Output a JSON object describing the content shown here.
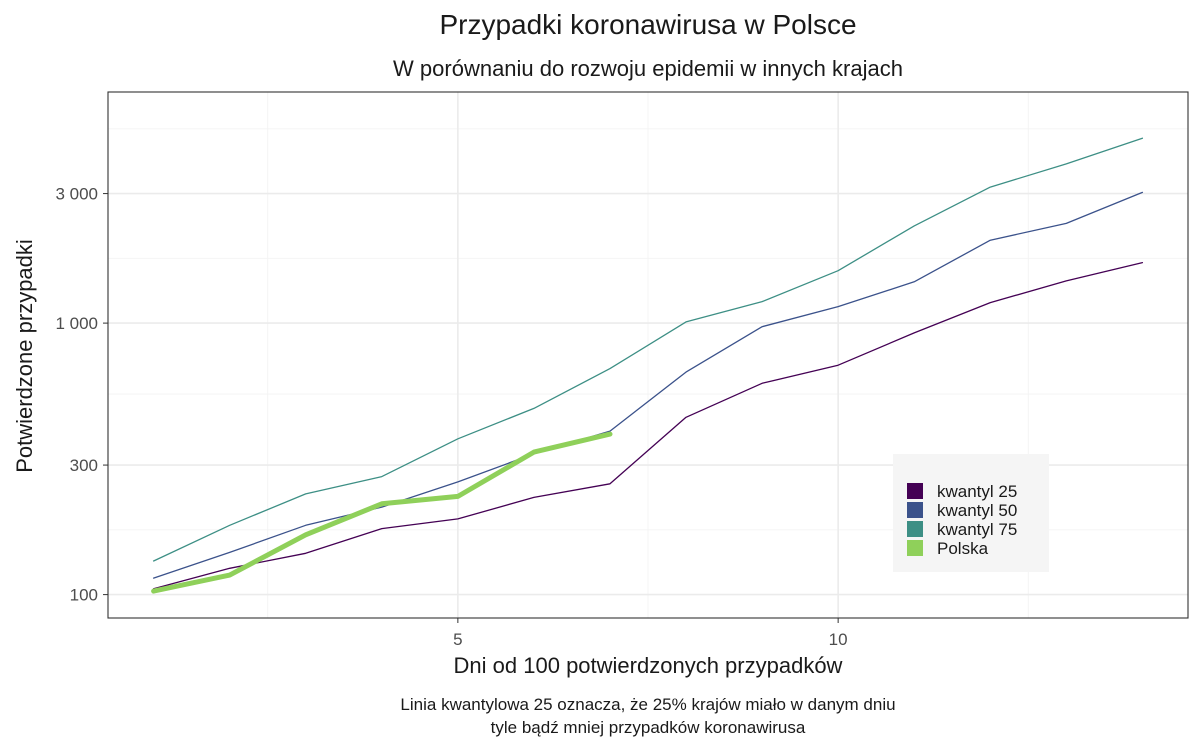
{
  "chart_data": {
    "type": "line",
    "title": "Przypadki koronawirusa w Polsce",
    "subtitle": "W porównaniu do rozwoju epidemii w innych krajach",
    "xlabel": "Dni od 100 potwierdzonych przypadków",
    "ylabel": "Potwierdzone przypadki",
    "caption_lines": [
      "Linia kwantylowa 25 oznacza, że 25% krajów miało w danym dniu",
      "tyle bądź mniej przypadków koronawirusa"
    ],
    "x_ticks": [
      5,
      10
    ],
    "x_tick_labels": [
      "5",
      "10"
    ],
    "y_ticks": [
      100,
      300,
      1000,
      3000
    ],
    "y_tick_labels": [
      "100",
      "300",
      "1 000",
      "3 000"
    ],
    "y_scale": "log10",
    "xlim": [
      0.4,
      14.6
    ],
    "ylim": [
      82,
      7100
    ],
    "grid": true,
    "legend_position": "bottom-right inside",
    "series": [
      {
        "name": "kwantyl 25",
        "color": "#440154",
        "x": [
          1,
          2,
          3,
          4,
          5,
          6,
          7,
          8,
          9,
          10,
          11,
          12,
          13,
          14
        ],
        "values": [
          105,
          125,
          142,
          175,
          190,
          228,
          256,
          450,
          600,
          700,
          920,
          1190,
          1430,
          1670
        ]
      },
      {
        "name": "kwantyl 50",
        "color": "#3b528b",
        "x": [
          1,
          2,
          3,
          4,
          5,
          6,
          7,
          8,
          9,
          10,
          11,
          12,
          13,
          14
        ],
        "values": [
          115,
          143,
          180,
          210,
          260,
          330,
          400,
          660,
          970,
          1150,
          1420,
          2020,
          2330,
          3030
        ]
      },
      {
        "name": "kwantyl 75",
        "color": "#3d8f85",
        "x": [
          1,
          2,
          3,
          4,
          5,
          6,
          7,
          8,
          9,
          10,
          11,
          12,
          13,
          14
        ],
        "values": [
          133,
          180,
          235,
          272,
          375,
          485,
          680,
          1010,
          1200,
          1560,
          2280,
          3170,
          3860,
          4800
        ]
      },
      {
        "name": "Polska",
        "color": "#8fd05a",
        "x": [
          1,
          2,
          3,
          4,
          5,
          6,
          7
        ],
        "values": [
          103,
          118,
          166,
          216,
          230,
          335,
          390
        ]
      }
    ]
  }
}
